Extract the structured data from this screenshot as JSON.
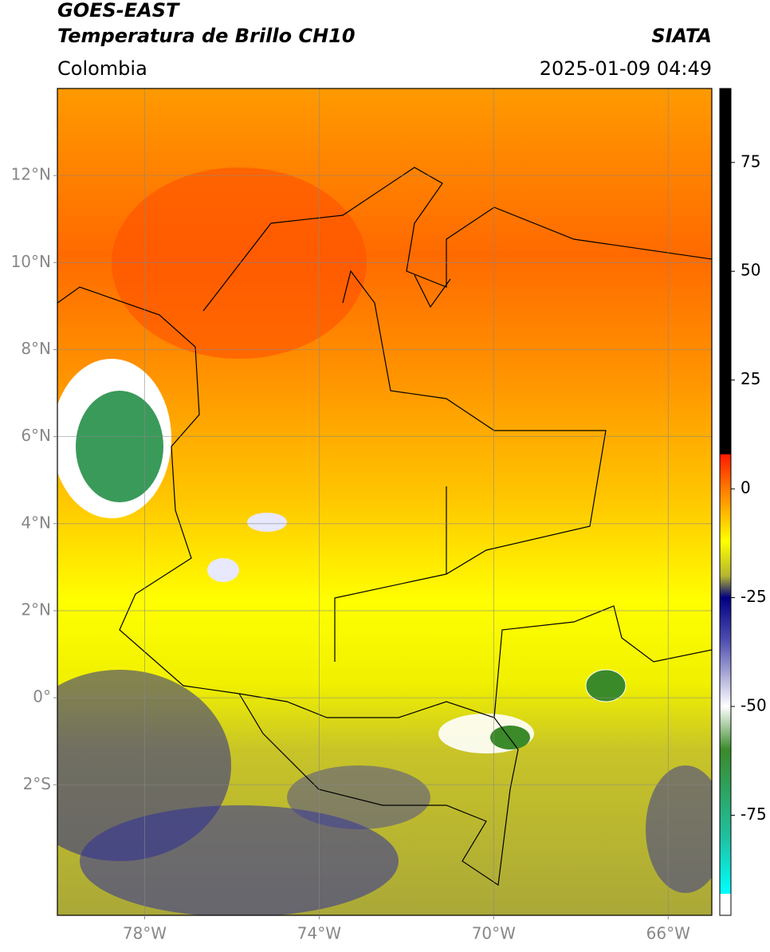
{
  "header": {
    "title": "GOES-EAST",
    "subtitle": "Temperatura de Brillo CH10",
    "region": "Colombia",
    "source": "SIATA",
    "datetime": "2025-01-09 04:49"
  },
  "map": {
    "xlim": [
      -80,
      -65
    ],
    "ylim": [
      -5,
      14
    ],
    "xticks": [
      {
        "value": -78,
        "label": "78°W"
      },
      {
        "value": -74,
        "label": "74°W"
      },
      {
        "value": -70,
        "label": "70°W"
      },
      {
        "value": -66,
        "label": "66°W"
      }
    ],
    "yticks": [
      {
        "value": 12,
        "label": "12°N"
      },
      {
        "value": 10,
        "label": "10°N"
      },
      {
        "value": 8,
        "label": "8°N"
      },
      {
        "value": 6,
        "label": "6°N"
      },
      {
        "value": 4,
        "label": "4°N"
      },
      {
        "value": 2,
        "label": "2°N"
      },
      {
        "value": 0,
        "label": "0°"
      },
      {
        "value": -2,
        "label": "2°S"
      }
    ],
    "grid": true
  },
  "colorbar": {
    "lim": [
      -98,
      92
    ],
    "ticks": [
      75,
      50,
      25,
      0,
      -25,
      -50,
      -75
    ],
    "stops": [
      [
        92,
        "#000000"
      ],
      [
        8,
        "#000000"
      ],
      [
        7.9,
        "#ff1a00"
      ],
      [
        0,
        "#ff7a00"
      ],
      [
        -12,
        "#ffff00"
      ],
      [
        -20,
        "#b5b530"
      ],
      [
        -25,
        "#000080"
      ],
      [
        -35,
        "#5050b0"
      ],
      [
        -50,
        "#ffffff"
      ],
      [
        -60,
        "#3a8a2a"
      ],
      [
        -80,
        "#20c0a0"
      ],
      [
        -93,
        "#00ffff"
      ],
      [
        -93.1,
        "#ffffff"
      ],
      [
        -98,
        "#ffffff"
      ]
    ]
  }
}
